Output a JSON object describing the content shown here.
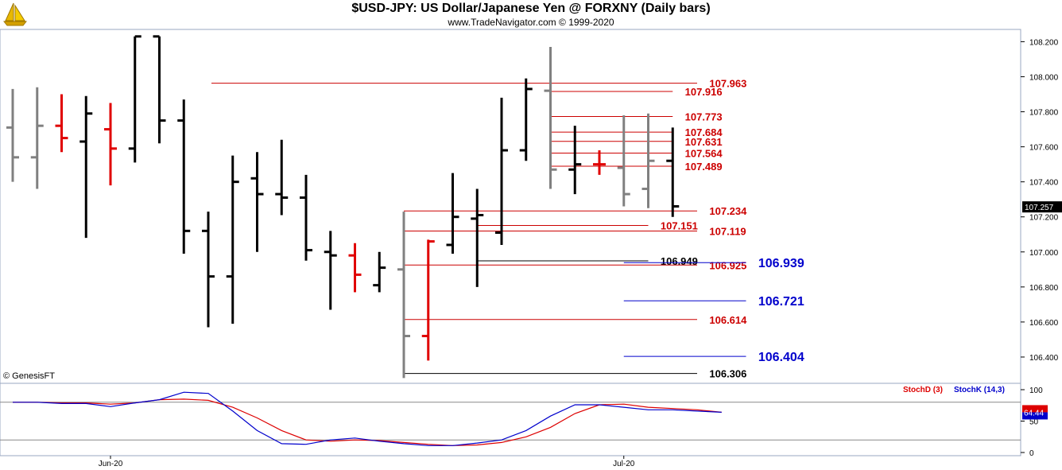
{
  "header": {
    "title": "$USD-JPY:  US Dollar/Japanese Yen @ FORXNY  (Daily bars)",
    "subtitle": "www.TradeNavigator.com © 1999-2020",
    "credit": "© GenesisFT"
  },
  "colors": {
    "gray_bar": "#808080",
    "red_bar": "#e00000",
    "black_bar": "#000000",
    "red_level": "#cc0000",
    "blue_level": "#0000cc",
    "stochD": "#dd0000",
    "stochK": "#0000cc",
    "axis_text": "#000000"
  },
  "chart_data": [
    {
      "type": "ohlc",
      "ylim": [
        106.25,
        108.27
      ],
      "ticks": [
        108.2,
        108.0,
        107.8,
        107.6,
        107.4,
        107.2,
        107.0,
        106.8,
        106.6,
        106.4
      ],
      "tick_labels": [
        "108.200",
        "108.000",
        "107.800",
        "107.600",
        "107.400",
        "107.200",
        "107.000",
        "106.800",
        "106.600",
        "106.400"
      ],
      "last_price": 107.257,
      "last_price_label": "107.257",
      "x_labels": [
        {
          "bar": 4,
          "label": "Jun-20"
        },
        {
          "bar": 25,
          "label": "Jul-20"
        }
      ],
      "bars": [
        {
          "o": 107.71,
          "h": 107.93,
          "l": 107.4,
          "c": 107.54,
          "color": "gray"
        },
        {
          "o": 107.54,
          "h": 107.94,
          "l": 107.36,
          "c": 107.72,
          "color": "gray"
        },
        {
          "o": 107.72,
          "h": 107.9,
          "l": 107.57,
          "c": 107.65,
          "color": "red"
        },
        {
          "o": 107.63,
          "h": 107.89,
          "l": 107.08,
          "c": 107.79,
          "color": "black"
        },
        {
          "o": 107.7,
          "h": 107.85,
          "l": 107.38,
          "c": 107.59,
          "color": "red"
        },
        {
          "o": 107.59,
          "h": 108.23,
          "l": 107.51,
          "c": 108.23,
          "color": "black"
        },
        {
          "o": 108.23,
          "h": 108.23,
          "l": 107.62,
          "c": 107.75,
          "color": "black"
        },
        {
          "o": 107.75,
          "h": 107.87,
          "l": 106.99,
          "c": 107.12,
          "color": "black"
        },
        {
          "o": 107.12,
          "h": 107.23,
          "l": 106.57,
          "c": 106.86,
          "color": "black"
        },
        {
          "o": 106.86,
          "h": 107.55,
          "l": 106.59,
          "c": 107.4,
          "color": "black"
        },
        {
          "o": 107.42,
          "h": 107.57,
          "l": 107.0,
          "c": 107.33,
          "color": "black"
        },
        {
          "o": 107.33,
          "h": 107.64,
          "l": 107.21,
          "c": 107.31,
          "color": "black"
        },
        {
          "o": 107.31,
          "h": 107.44,
          "l": 106.95,
          "c": 107.01,
          "color": "black"
        },
        {
          "o": 107.0,
          "h": 107.12,
          "l": 106.67,
          "c": 106.98,
          "color": "black"
        },
        {
          "o": 106.98,
          "h": 107.05,
          "l": 106.77,
          "c": 106.87,
          "color": "red"
        },
        {
          "o": 106.81,
          "h": 107.0,
          "l": 106.77,
          "c": 106.91,
          "color": "black"
        },
        {
          "o": 106.9,
          "h": 107.23,
          "l": 106.28,
          "c": 106.52,
          "color": "gray"
        },
        {
          "o": 106.52,
          "h": 107.07,
          "l": 106.38,
          "c": 107.06,
          "color": "red"
        },
        {
          "o": 107.04,
          "h": 107.45,
          "l": 106.99,
          "c": 107.2,
          "color": "black"
        },
        {
          "o": 107.19,
          "h": 107.36,
          "l": 106.8,
          "c": 107.21,
          "color": "black"
        },
        {
          "o": 107.11,
          "h": 107.88,
          "l": 107.04,
          "c": 107.58,
          "color": "black"
        },
        {
          "o": 107.58,
          "h": 107.99,
          "l": 107.52,
          "c": 107.93,
          "color": "black"
        },
        {
          "o": 107.92,
          "h": 108.17,
          "l": 107.36,
          "c": 107.47,
          "color": "gray"
        },
        {
          "o": 107.47,
          "h": 107.72,
          "l": 107.33,
          "c": 107.5,
          "color": "black"
        },
        {
          "o": 107.5,
          "h": 107.58,
          "l": 107.44,
          "c": 107.5,
          "color": "red"
        },
        {
          "o": 107.48,
          "h": 107.78,
          "l": 107.26,
          "c": 107.33,
          "color": "gray"
        },
        {
          "o": 107.36,
          "h": 107.79,
          "l": 107.25,
          "c": 107.52,
          "color": "gray"
        },
        {
          "o": 107.52,
          "h": 107.71,
          "l": 107.2,
          "c": 107.26,
          "color": "black"
        }
      ],
      "levels": [
        {
          "v": 107.963,
          "label": "107.963",
          "color": "red",
          "x0": -1,
          "x1": 28.0,
          "lx": 28.5
        },
        {
          "v": 107.916,
          "label": "107.916",
          "color": "red",
          "x0": 22.0,
          "x1": 27.0,
          "lx": 27.5
        },
        {
          "v": 107.773,
          "label": "107.773",
          "color": "red",
          "x0": 22.0,
          "x1": 27.0,
          "lx": 27.5
        },
        {
          "v": 107.684,
          "label": "107.684",
          "color": "red",
          "x0": 22.0,
          "x1": 27.0,
          "lx": 27.5
        },
        {
          "v": 107.631,
          "label": "107.631",
          "color": "red",
          "x0": 22.0,
          "x1": 27.0,
          "lx": 27.5
        },
        {
          "v": 107.564,
          "label": "107.564",
          "color": "red",
          "x0": 22.0,
          "x1": 27.0,
          "lx": 27.5
        },
        {
          "v": 107.489,
          "label": "107.489",
          "color": "red",
          "x0": 22.0,
          "x1": 27.0,
          "lx": 27.5
        },
        {
          "v": 107.234,
          "label": "107.234",
          "color": "red",
          "x0": 16.0,
          "x1": 28.0,
          "lx": 28.5
        },
        {
          "v": 107.151,
          "label": "107.151",
          "color": "red",
          "x0": 19.0,
          "x1": 26.0,
          "lx": 26.5
        },
        {
          "v": 107.119,
          "label": "107.119",
          "color": "red",
          "x0": 16.0,
          "x1": 28.0,
          "lx": 28.5
        },
        {
          "v": 106.949,
          "label": "106.949",
          "color": "black",
          "x0": 19.0,
          "x1": 26.0,
          "lx": 26.5
        },
        {
          "v": 106.925,
          "label": "106.925",
          "color": "red",
          "x0": 16.0,
          "x1": 28.0,
          "lx": 28.5
        },
        {
          "v": 106.939,
          "label": "106.939",
          "color": "blue",
          "x0": 25.0,
          "x1": 30.0,
          "lx": 30.5
        },
        {
          "v": 106.721,
          "label": "106.721",
          "color": "blue",
          "x0": 25.0,
          "x1": 30.0,
          "lx": 30.5
        },
        {
          "v": 106.614,
          "label": "106.614",
          "color": "red",
          "x0": 16.0,
          "x1": 28.0,
          "lx": 28.5
        },
        {
          "v": 106.404,
          "label": "106.404",
          "color": "blue",
          "x0": 25.0,
          "x1": 30.0,
          "lx": 30.5
        },
        {
          "v": 106.306,
          "label": "106.306",
          "color": "black",
          "x0": 16.0,
          "x1": 28.0,
          "lx": 28.5
        }
      ]
    },
    {
      "type": "line",
      "ylim": [
        0,
        100
      ],
      "ticks": [
        0,
        50,
        100
      ],
      "tick_labels": [
        "0",
        "50",
        "100"
      ],
      "levels": [
        80,
        20
      ],
      "legend": [
        "StochD (3)",
        "StochK (14,3)"
      ],
      "last_value_label": "64.44",
      "series": [
        {
          "name": "StochD (3)",
          "color": "red",
          "values": [
            80,
            80,
            79,
            79,
            77,
            79,
            84,
            85,
            83,
            72,
            55,
            35,
            20,
            18,
            20,
            19,
            16,
            13,
            11,
            12,
            16,
            25,
            40,
            62,
            76,
            77,
            72,
            70,
            68,
            64
          ]
        },
        {
          "name": "StochK (14,3)",
          "color": "blue",
          "values": [
            80,
            80,
            78,
            78,
            73,
            79,
            84,
            96,
            94,
            66,
            35,
            14,
            13,
            20,
            23,
            18,
            14,
            11,
            11,
            15,
            20,
            35,
            58,
            76,
            76,
            72,
            68,
            68,
            66,
            64
          ]
        }
      ]
    }
  ]
}
